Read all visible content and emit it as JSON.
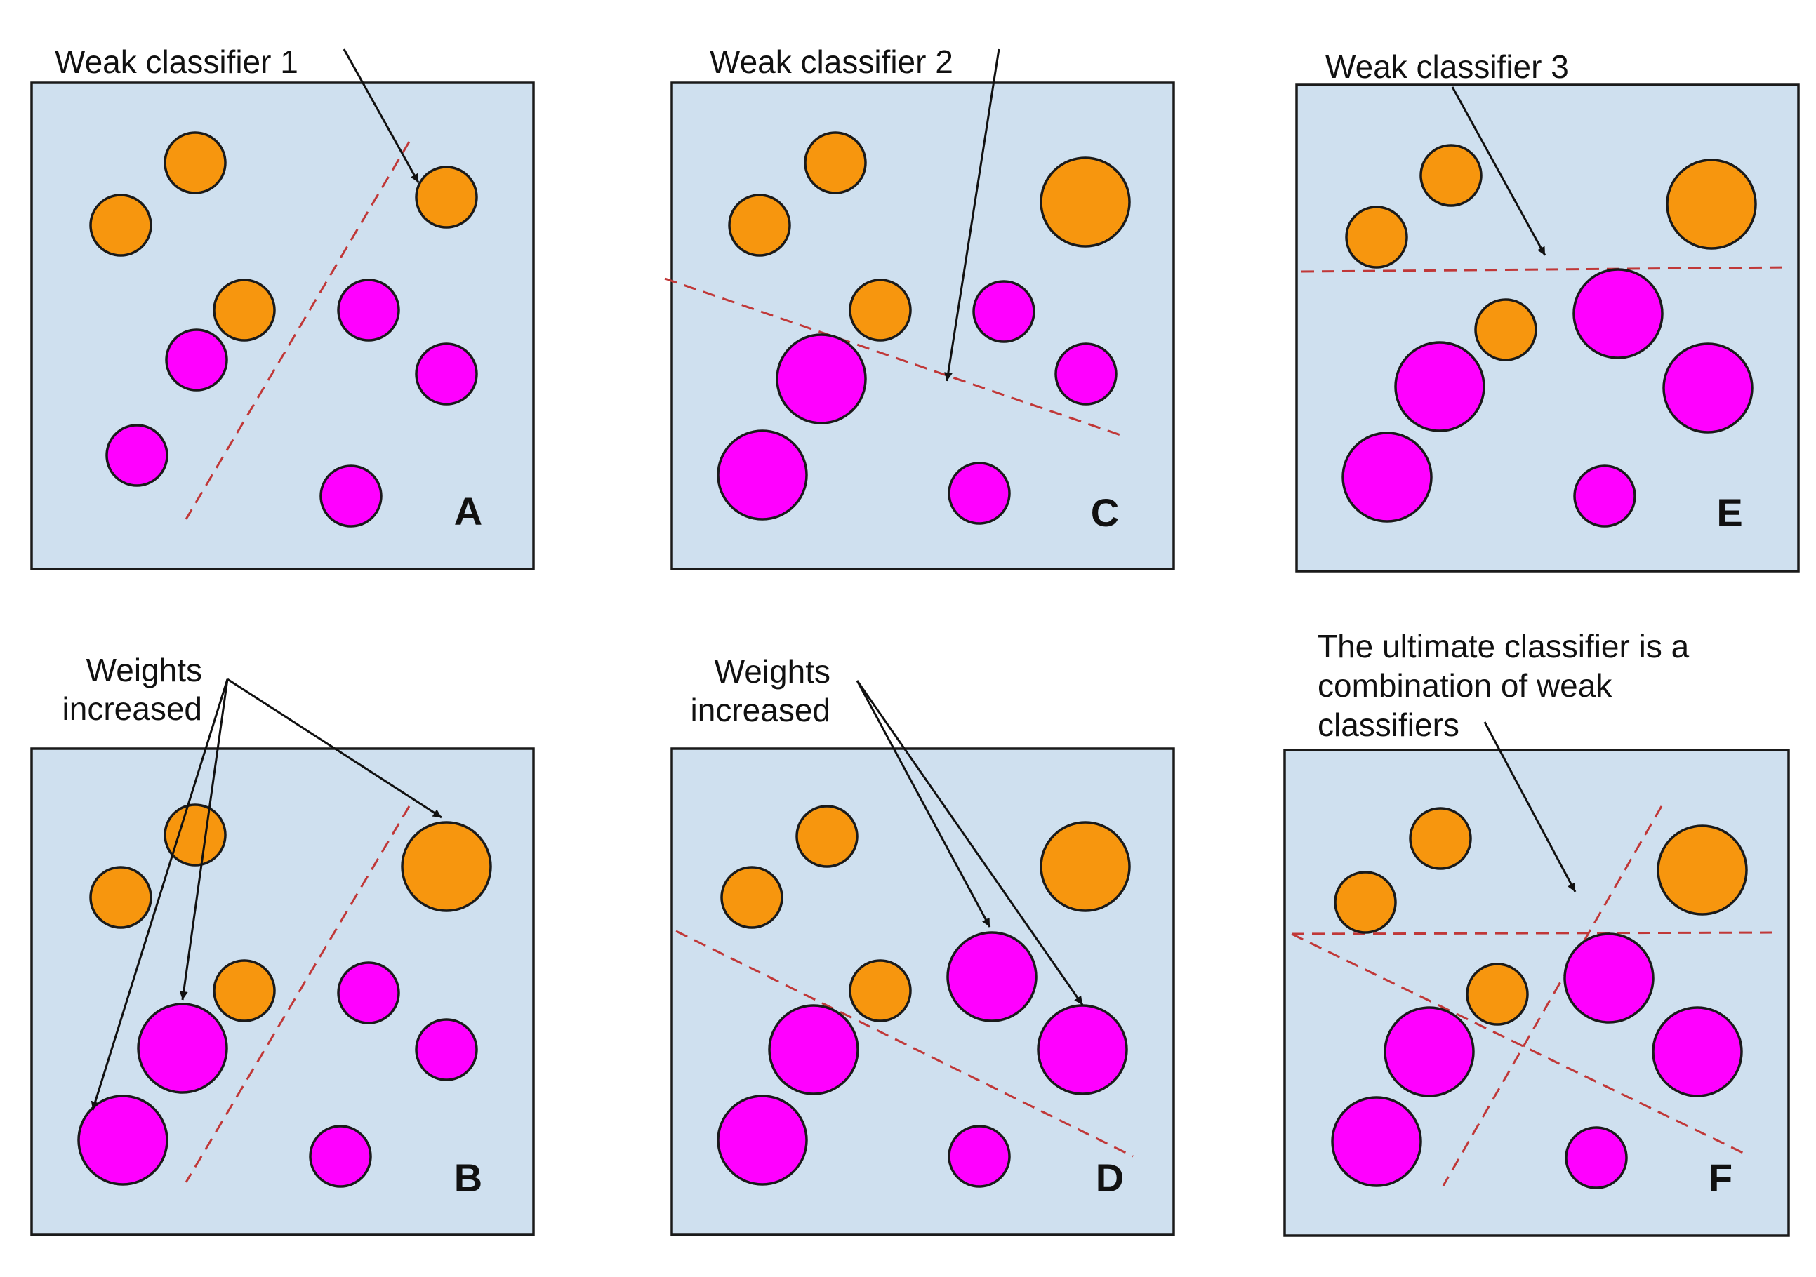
{
  "colors": {
    "background": "#ffffff",
    "panel_fill": "#cfe0ef",
    "panel_stroke": "#1a1a1a",
    "orange": "#f7960e",
    "magenta": "#ff00ff",
    "circle_stroke": "#1a1a1a",
    "boundary": "#c03838",
    "arrow": "#111111"
  },
  "panels": [
    {
      "key": "A",
      "letter": "A",
      "caption": [
        "Weak classifier 1"
      ]
    },
    {
      "key": "B",
      "letter": "B",
      "caption": [
        "Weights",
        "increased"
      ]
    },
    {
      "key": "C",
      "letter": "C",
      "caption": [
        "Weak classifier 2"
      ]
    },
    {
      "key": "D",
      "letter": "D",
      "caption": [
        "Weights",
        "increased"
      ]
    },
    {
      "key": "E",
      "letter": "E",
      "caption": [
        "Weak classifier 3"
      ]
    },
    {
      "key": "F",
      "letter": "F",
      "caption": [
        "The ultimate classifier is a",
        "combination of weak",
        "classifiers"
      ]
    }
  ]
}
